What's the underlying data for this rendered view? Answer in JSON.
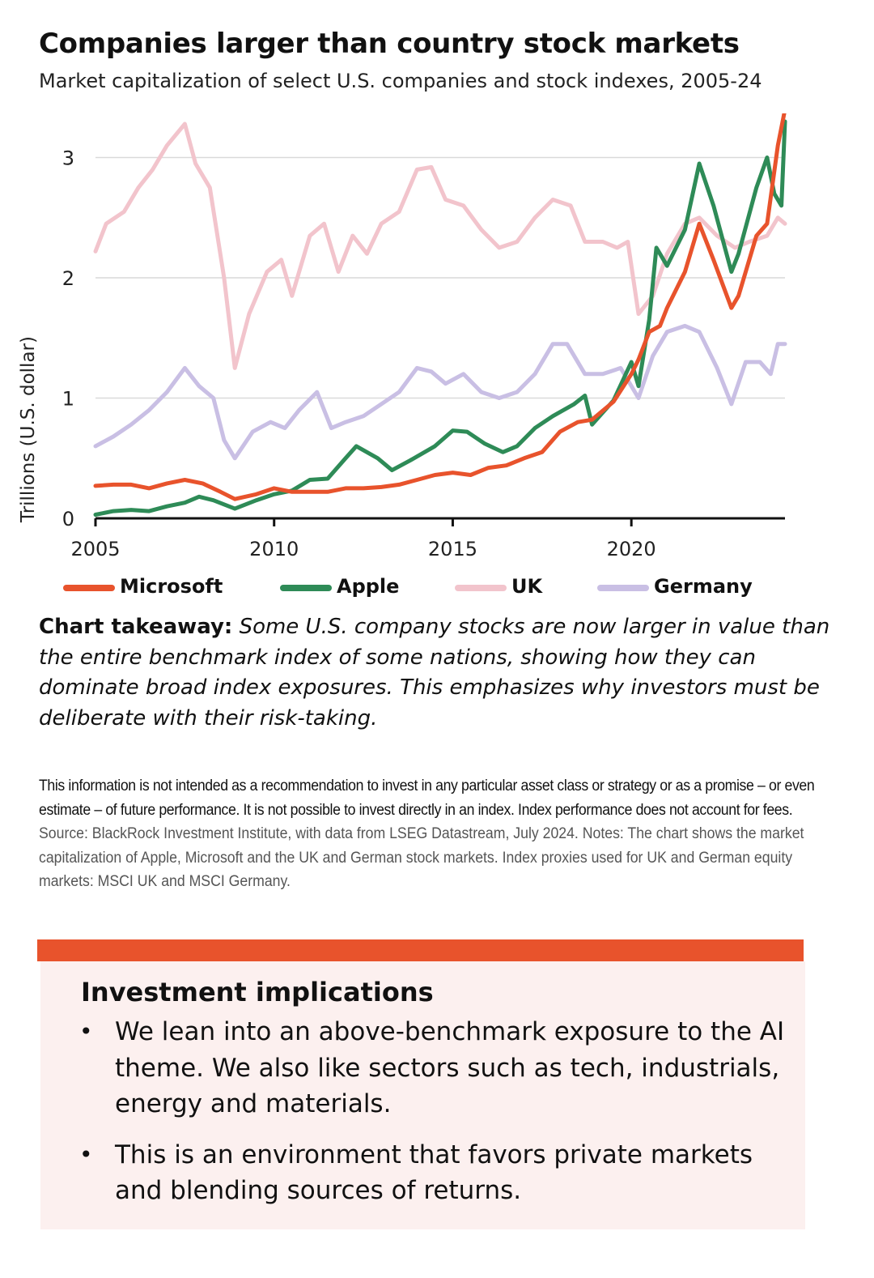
{
  "header": {
    "title": "Companies larger than country stock markets",
    "subtitle": "Market capitalization of select U.S. companies and stock indexes, 2005-24"
  },
  "chart_data": {
    "type": "line",
    "ylabel": "Trillions (U.S. dollar)",
    "xlabel": "",
    "xlim": [
      2005,
      2024.3
    ],
    "ylim": [
      0,
      3.3
    ],
    "x_ticks": [
      "2005",
      "2010",
      "2015",
      "2020"
    ],
    "y_ticks": [
      "0",
      "1",
      "2",
      "3"
    ],
    "grid": "horizontal",
    "legend": "bottom",
    "series": [
      {
        "name": "Microsoft",
        "color": "#e8532c",
        "points": [
          [
            2005,
            0.27
          ],
          [
            2005.5,
            0.28
          ],
          [
            2006,
            0.28
          ],
          [
            2006.5,
            0.25
          ],
          [
            2007,
            0.29
          ],
          [
            2007.5,
            0.32
          ],
          [
            2008,
            0.29
          ],
          [
            2008.5,
            0.22
          ],
          [
            2008.9,
            0.16
          ],
          [
            2009.5,
            0.2
          ],
          [
            2010,
            0.25
          ],
          [
            2010.5,
            0.22
          ],
          [
            2011,
            0.22
          ],
          [
            2011.5,
            0.22
          ],
          [
            2012,
            0.25
          ],
          [
            2012.5,
            0.25
          ],
          [
            2013,
            0.26
          ],
          [
            2013.5,
            0.28
          ],
          [
            2014,
            0.32
          ],
          [
            2014.5,
            0.36
          ],
          [
            2015,
            0.38
          ],
          [
            2015.5,
            0.36
          ],
          [
            2016,
            0.42
          ],
          [
            2016.5,
            0.44
          ],
          [
            2017,
            0.5
          ],
          [
            2017.5,
            0.55
          ],
          [
            2018,
            0.72
          ],
          [
            2018.5,
            0.8
          ],
          [
            2018.9,
            0.82
          ],
          [
            2019.5,
            0.97
          ],
          [
            2020,
            1.2
          ],
          [
            2020.2,
            1.32
          ],
          [
            2020.5,
            1.55
          ],
          [
            2020.8,
            1.6
          ],
          [
            2021,
            1.75
          ],
          [
            2021.5,
            2.05
          ],
          [
            2021.9,
            2.45
          ],
          [
            2022.3,
            2.15
          ],
          [
            2022.8,
            1.75
          ],
          [
            2023,
            1.85
          ],
          [
            2023.5,
            2.35
          ],
          [
            2023.8,
            2.45
          ],
          [
            2024.1,
            3.1
          ],
          [
            2024.3,
            3.4
          ]
        ]
      },
      {
        "name": "Apple",
        "color": "#2e8b57",
        "points": [
          [
            2005,
            0.03
          ],
          [
            2005.5,
            0.06
          ],
          [
            2006,
            0.07
          ],
          [
            2006.5,
            0.06
          ],
          [
            2007,
            0.1
          ],
          [
            2007.5,
            0.13
          ],
          [
            2007.9,
            0.18
          ],
          [
            2008.3,
            0.15
          ],
          [
            2008.9,
            0.08
          ],
          [
            2009.5,
            0.15
          ],
          [
            2010,
            0.2
          ],
          [
            2010.5,
            0.23
          ],
          [
            2011,
            0.32
          ],
          [
            2011.5,
            0.33
          ],
          [
            2012,
            0.5
          ],
          [
            2012.3,
            0.6
          ],
          [
            2012.9,
            0.5
          ],
          [
            2013.3,
            0.4
          ],
          [
            2013.8,
            0.48
          ],
          [
            2014.5,
            0.6
          ],
          [
            2015,
            0.73
          ],
          [
            2015.4,
            0.72
          ],
          [
            2015.9,
            0.62
          ],
          [
            2016.4,
            0.55
          ],
          [
            2016.8,
            0.6
          ],
          [
            2017.3,
            0.75
          ],
          [
            2017.8,
            0.85
          ],
          [
            2018.4,
            0.95
          ],
          [
            2018.7,
            1.02
          ],
          [
            2018.9,
            0.78
          ],
          [
            2019.5,
            0.98
          ],
          [
            2020,
            1.3
          ],
          [
            2020.2,
            1.1
          ],
          [
            2020.5,
            1.65
          ],
          [
            2020.7,
            2.25
          ],
          [
            2021,
            2.1
          ],
          [
            2021.5,
            2.4
          ],
          [
            2021.9,
            2.95
          ],
          [
            2022.3,
            2.6
          ],
          [
            2022.8,
            2.05
          ],
          [
            2023,
            2.2
          ],
          [
            2023.5,
            2.75
          ],
          [
            2023.8,
            3.0
          ],
          [
            2024,
            2.7
          ],
          [
            2024.2,
            2.6
          ],
          [
            2024.3,
            3.3
          ]
        ]
      },
      {
        "name": "UK",
        "color": "#f2c4cc",
        "points": [
          [
            2005,
            2.22
          ],
          [
            2005.3,
            2.45
          ],
          [
            2005.8,
            2.55
          ],
          [
            2006.2,
            2.75
          ],
          [
            2006.6,
            2.9
          ],
          [
            2007,
            3.1
          ],
          [
            2007.5,
            3.28
          ],
          [
            2007.8,
            2.95
          ],
          [
            2008.2,
            2.75
          ],
          [
            2008.6,
            2.0
          ],
          [
            2008.9,
            1.25
          ],
          [
            2009.3,
            1.7
          ],
          [
            2009.8,
            2.05
          ],
          [
            2010.2,
            2.15
          ],
          [
            2010.5,
            1.85
          ],
          [
            2011,
            2.35
          ],
          [
            2011.4,
            2.45
          ],
          [
            2011.8,
            2.05
          ],
          [
            2012.2,
            2.35
          ],
          [
            2012.6,
            2.2
          ],
          [
            2013,
            2.45
          ],
          [
            2013.5,
            2.55
          ],
          [
            2014,
            2.9
          ],
          [
            2014.4,
            2.92
          ],
          [
            2014.8,
            2.65
          ],
          [
            2015.3,
            2.6
          ],
          [
            2015.8,
            2.4
          ],
          [
            2016.3,
            2.25
          ],
          [
            2016.8,
            2.3
          ],
          [
            2017.3,
            2.5
          ],
          [
            2017.8,
            2.65
          ],
          [
            2018.3,
            2.6
          ],
          [
            2018.7,
            2.3
          ],
          [
            2019.2,
            2.3
          ],
          [
            2019.6,
            2.25
          ],
          [
            2019.9,
            2.3
          ],
          [
            2020.2,
            1.7
          ],
          [
            2020.6,
            1.85
          ],
          [
            2021,
            2.2
          ],
          [
            2021.5,
            2.45
          ],
          [
            2021.9,
            2.5
          ],
          [
            2022.4,
            2.35
          ],
          [
            2022.9,
            2.25
          ],
          [
            2023.3,
            2.3
          ],
          [
            2023.8,
            2.35
          ],
          [
            2024.1,
            2.5
          ],
          [
            2024.3,
            2.45
          ]
        ]
      },
      {
        "name": "Germany",
        "color": "#c9bfe4",
        "points": [
          [
            2005,
            0.6
          ],
          [
            2005.5,
            0.68
          ],
          [
            2006,
            0.78
          ],
          [
            2006.5,
            0.9
          ],
          [
            2007,
            1.05
          ],
          [
            2007.5,
            1.25
          ],
          [
            2007.9,
            1.1
          ],
          [
            2008.3,
            1.0
          ],
          [
            2008.6,
            0.65
          ],
          [
            2008.9,
            0.5
          ],
          [
            2009.4,
            0.72
          ],
          [
            2009.9,
            0.8
          ],
          [
            2010.3,
            0.75
          ],
          [
            2010.7,
            0.9
          ],
          [
            2011.2,
            1.05
          ],
          [
            2011.6,
            0.75
          ],
          [
            2012,
            0.8
          ],
          [
            2012.5,
            0.85
          ],
          [
            2013,
            0.95
          ],
          [
            2013.5,
            1.05
          ],
          [
            2014,
            1.25
          ],
          [
            2014.4,
            1.22
          ],
          [
            2014.8,
            1.12
          ],
          [
            2015.3,
            1.2
          ],
          [
            2015.8,
            1.05
          ],
          [
            2016.3,
            1.0
          ],
          [
            2016.8,
            1.05
          ],
          [
            2017.3,
            1.2
          ],
          [
            2017.8,
            1.45
          ],
          [
            2018.2,
            1.45
          ],
          [
            2018.7,
            1.2
          ],
          [
            2019.2,
            1.2
          ],
          [
            2019.7,
            1.25
          ],
          [
            2020.2,
            1.0
          ],
          [
            2020.6,
            1.35
          ],
          [
            2021,
            1.55
          ],
          [
            2021.5,
            1.6
          ],
          [
            2021.9,
            1.55
          ],
          [
            2022.4,
            1.25
          ],
          [
            2022.8,
            0.95
          ],
          [
            2023.2,
            1.3
          ],
          [
            2023.6,
            1.3
          ],
          [
            2023.9,
            1.2
          ],
          [
            2024.1,
            1.45
          ],
          [
            2024.3,
            1.45
          ]
        ]
      }
    ]
  },
  "takeaway": {
    "lead": "Chart takeaway:",
    "text": "Some U.S. company stocks are now larger in value than the entire benchmark index of some nations, showing how they can dominate broad index exposures. This emphasizes why investors must be deliberate with their risk-taking."
  },
  "disclaimer": {
    "strong": "This information is not intended as a recommendation to invest in any particular asset class or strategy or as a promise – or even estimate – of future performance. It is not possible to invest directly in an index. Index performance does not account for fees.",
    "source": "Source: BlackRock Investment Institute, with data from LSEG Datastream, July 2024. Notes: The chart shows the market capitalization of Apple, Microsoft and the UK and German stock markets. Index proxies used for UK and German equity markets: MSCI UK and MSCI Germany."
  },
  "implications": {
    "title": "Investment implications",
    "bullet": "•",
    "items": [
      "We lean into an above-benchmark exposure to the AI theme. We also like sectors such as tech, industrials, energy and materials.",
      "This is an environment that favors private markets and blending sources of returns."
    ],
    "accent_color": "#e8532c",
    "box_color": "#fcf0ef"
  }
}
